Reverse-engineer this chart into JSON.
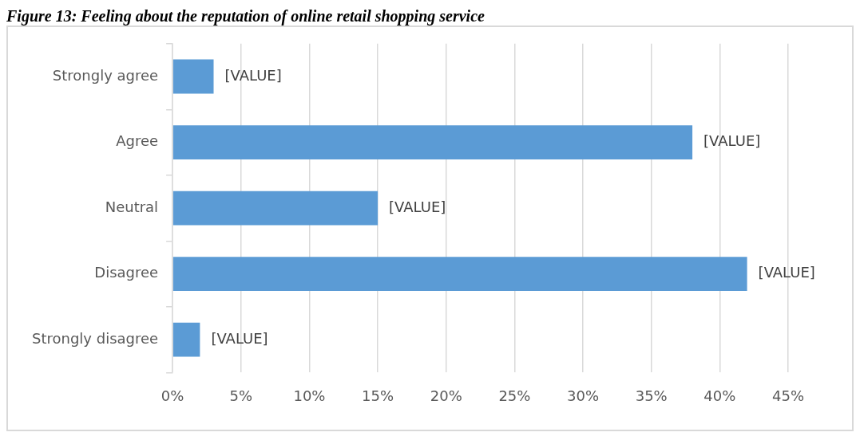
{
  "chart_data": {
    "type": "bar",
    "orientation": "horizontal",
    "title": "Figure 13: Feeling about the reputation of online retail shopping service",
    "categories": [
      "Strongly agree",
      "Agree",
      "Neutral",
      "Disagree",
      "Strongly disagree"
    ],
    "values": [
      3,
      38,
      15,
      42,
      2
    ],
    "value_labels": [
      "[VALUE]",
      "[VALUE]",
      "[VALUE]",
      "[VALUE]",
      "[VALUE]"
    ],
    "color": "#5b9bd5",
    "xlim": [
      0,
      45
    ],
    "xticks": [
      {
        "value": 0,
        "label": "0%"
      },
      {
        "value": 5,
        "label": "5%"
      },
      {
        "value": 10,
        "label": "10%"
      },
      {
        "value": 15,
        "label": "15%"
      },
      {
        "value": 20,
        "label": "20%"
      },
      {
        "value": 25,
        "label": "25%"
      },
      {
        "value": 30,
        "label": "30%"
      },
      {
        "value": 35,
        "label": "35%"
      },
      {
        "value": 40,
        "label": "40%"
      },
      {
        "value": 45,
        "label": "45%"
      }
    ],
    "grid": "x",
    "legend": false
  }
}
